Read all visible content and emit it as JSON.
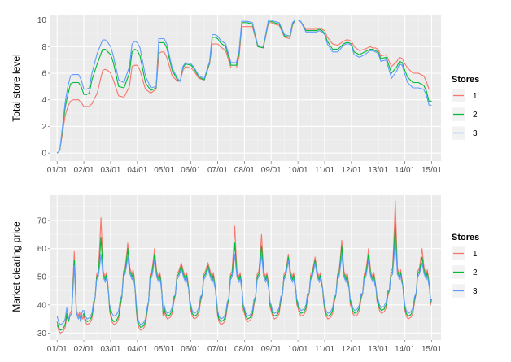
{
  "chart_data": [
    {
      "type": "line",
      "ylabel": "Total store level",
      "ylim": [
        -0.6,
        10.4
      ],
      "yticks": [
        0,
        2,
        4,
        6,
        8,
        10
      ],
      "x_tick_labels": [
        "01/01",
        "02/01",
        "03/01",
        "04/01",
        "05/01",
        "06/01",
        "07/01",
        "08/01",
        "09/01",
        "10/01",
        "11/01",
        "12/01",
        "13/01",
        "14/01",
        "15/01"
      ],
      "x_unit": "day",
      "xlim": [
        -0.25,
        14.35
      ],
      "grid": true,
      "legend": {
        "title": "Stores",
        "position": "right"
      },
      "series": [
        {
          "name": "1",
          "color": "#F8766D",
          "x": [
            0,
            0.1,
            0.2,
            0.3,
            0.4,
            0.5,
            0.6,
            0.7,
            0.8,
            0.9,
            1.0,
            1.1,
            1.2,
            1.3,
            1.5,
            1.7,
            1.8,
            1.9,
            2.0,
            2.1,
            2.3,
            2.5,
            2.7,
            2.8,
            2.9,
            3.0,
            3.1,
            3.3,
            3.5,
            3.7,
            3.8,
            3.9,
            4.0,
            4.1,
            4.3,
            4.5,
            4.6,
            4.7,
            4.8,
            5.0,
            5.1,
            5.3,
            5.5,
            5.7,
            5.8,
            5.9,
            6.0,
            6.1,
            6.3,
            6.5,
            6.7,
            6.8,
            6.9,
            7.0,
            7.1,
            7.3,
            7.5,
            7.7,
            7.8,
            7.9,
            8.0,
            8.1,
            8.3,
            8.5,
            8.7,
            8.8,
            8.9,
            9.0,
            9.1,
            9.3,
            9.5,
            9.7,
            9.8,
            9.9,
            10.0,
            10.1,
            10.3,
            10.5,
            10.7,
            10.8,
            10.9,
            11.0,
            11.1,
            11.3,
            11.5,
            11.7,
            11.8,
            11.9,
            12.0,
            12.1,
            12.3,
            12.5,
            12.7,
            12.8,
            12.9,
            13.0,
            13.1,
            13.3,
            13.5,
            13.7,
            13.8,
            13.9,
            14.0
          ],
          "y": [
            0,
            0.2,
            1.5,
            2.8,
            3.5,
            3.9,
            4.0,
            4.0,
            4.0,
            3.8,
            3.5,
            3.5,
            3.5,
            3.7,
            4.5,
            6.2,
            6.3,
            6.2,
            6.0,
            5.5,
            4.3,
            4.2,
            5.0,
            6.5,
            6.6,
            6.6,
            6.2,
            4.8,
            4.5,
            4.8,
            7.5,
            7.6,
            7.6,
            7.2,
            5.8,
            5.4,
            5.4,
            6.2,
            6.5,
            6.4,
            6.2,
            5.6,
            5.5,
            6.7,
            8.2,
            8.2,
            8.2,
            8.0,
            7.7,
            6.4,
            6.4,
            7.2,
            9.5,
            9.5,
            9.5,
            9.5,
            8.0,
            7.9,
            8.8,
            9.8,
            9.8,
            9.7,
            9.6,
            8.7,
            8.6,
            9.6,
            10.0,
            10.0,
            9.9,
            9.3,
            9.3,
            9.3,
            9.4,
            9.3,
            9.2,
            8.7,
            8.2,
            8.1,
            8.4,
            8.5,
            8.5,
            8.4,
            8.0,
            7.7,
            7.8,
            8.0,
            7.9,
            7.9,
            7.8,
            7.3,
            7.4,
            6.5,
            6.9,
            7.2,
            7.1,
            6.7,
            6.4,
            6.0,
            6.0,
            5.8,
            5.4,
            4.8,
            4.8
          ]
        },
        {
          "name": "2",
          "color": "#00BA38",
          "x": [
            0,
            0.1,
            0.2,
            0.3,
            0.4,
            0.5,
            0.6,
            0.7,
            0.8,
            0.9,
            1.0,
            1.1,
            1.2,
            1.3,
            1.5,
            1.7,
            1.8,
            1.9,
            2.0,
            2.1,
            2.3,
            2.5,
            2.7,
            2.8,
            2.9,
            3.0,
            3.1,
            3.3,
            3.5,
            3.7,
            3.8,
            3.9,
            4.0,
            4.1,
            4.3,
            4.5,
            4.6,
            4.7,
            4.8,
            5.0,
            5.1,
            5.3,
            5.5,
            5.7,
            5.8,
            5.9,
            6.0,
            6.1,
            6.3,
            6.5,
            6.7,
            6.8,
            6.9,
            7.0,
            7.1,
            7.3,
            7.5,
            7.7,
            7.8,
            7.9,
            8.0,
            8.1,
            8.3,
            8.5,
            8.7,
            8.8,
            8.9,
            9.0,
            9.1,
            9.3,
            9.5,
            9.7,
            9.8,
            9.9,
            10.0,
            10.1,
            10.3,
            10.5,
            10.7,
            10.8,
            10.9,
            11.0,
            11.1,
            11.3,
            11.5,
            11.7,
            11.8,
            11.9,
            12.0,
            12.1,
            12.3,
            12.5,
            12.7,
            12.8,
            12.9,
            13.0,
            13.1,
            13.3,
            13.5,
            13.7,
            13.8,
            13.9,
            14.0
          ],
          "y": [
            0,
            0.2,
            1.8,
            3.4,
            4.4,
            5.2,
            5.3,
            5.3,
            5.3,
            5.0,
            4.4,
            4.4,
            4.5,
            5.5,
            6.7,
            7.8,
            7.8,
            7.6,
            7.4,
            6.8,
            5.0,
            4.9,
            6.0,
            7.6,
            7.8,
            7.7,
            7.3,
            5.3,
            4.7,
            4.9,
            8.3,
            8.3,
            8.3,
            7.9,
            6.2,
            5.5,
            5.4,
            6.4,
            6.7,
            6.6,
            6.4,
            5.7,
            5.5,
            6.8,
            8.7,
            8.7,
            8.6,
            8.3,
            8.0,
            6.6,
            6.6,
            7.5,
            9.8,
            9.8,
            9.8,
            9.7,
            8.0,
            7.9,
            8.9,
            9.9,
            9.9,
            9.8,
            9.7,
            8.8,
            8.7,
            9.7,
            10.0,
            10.0,
            9.9,
            9.2,
            9.2,
            9.2,
            9.3,
            9.2,
            9.0,
            8.4,
            7.8,
            7.8,
            8.2,
            8.3,
            8.3,
            8.2,
            7.6,
            7.4,
            7.6,
            7.8,
            7.8,
            7.7,
            7.6,
            7.1,
            7.2,
            6.0,
            6.5,
            6.9,
            6.8,
            6.2,
            5.7,
            5.3,
            5.3,
            5.1,
            4.7,
            3.9,
            3.9
          ]
        },
        {
          "name": "3",
          "color": "#619CFF",
          "x": [
            0,
            0.1,
            0.2,
            0.3,
            0.4,
            0.5,
            0.6,
            0.7,
            0.8,
            0.9,
            1.0,
            1.1,
            1.2,
            1.3,
            1.5,
            1.7,
            1.8,
            1.9,
            2.0,
            2.1,
            2.3,
            2.5,
            2.7,
            2.8,
            2.9,
            3.0,
            3.1,
            3.3,
            3.5,
            3.7,
            3.8,
            3.9,
            4.0,
            4.1,
            4.3,
            4.5,
            4.6,
            4.7,
            4.8,
            5.0,
            5.1,
            5.3,
            5.5,
            5.7,
            5.8,
            5.9,
            6.0,
            6.1,
            6.3,
            6.5,
            6.7,
            6.8,
            6.9,
            7.0,
            7.1,
            7.3,
            7.5,
            7.7,
            7.8,
            7.9,
            8.0,
            8.1,
            8.3,
            8.5,
            8.7,
            8.8,
            8.9,
            9.0,
            9.1,
            9.3,
            9.5,
            9.7,
            9.8,
            9.9,
            10.0,
            10.1,
            10.3,
            10.5,
            10.7,
            10.8,
            10.9,
            11.0,
            11.1,
            11.3,
            11.5,
            11.7,
            11.8,
            11.9,
            12.0,
            12.1,
            12.3,
            12.5,
            12.7,
            12.8,
            12.9,
            13.0,
            13.1,
            13.3,
            13.5,
            13.7,
            13.8,
            13.9,
            14.0
          ],
          "y": [
            0,
            0.2,
            2.0,
            3.8,
            5.0,
            5.8,
            5.9,
            5.9,
            5.9,
            5.5,
            4.8,
            4.8,
            4.9,
            6.0,
            7.5,
            8.5,
            8.5,
            8.3,
            8.0,
            7.3,
            5.5,
            5.3,
            6.5,
            8.2,
            8.4,
            8.3,
            7.9,
            5.8,
            4.9,
            5.0,
            8.6,
            8.6,
            8.6,
            8.2,
            6.4,
            5.6,
            5.4,
            6.5,
            6.8,
            6.7,
            6.5,
            5.8,
            5.6,
            6.9,
            8.9,
            8.9,
            8.8,
            8.5,
            8.2,
            6.8,
            6.8,
            7.7,
            9.9,
            9.9,
            9.9,
            9.8,
            8.1,
            8.0,
            9.0,
            10.0,
            10.0,
            9.9,
            9.8,
            8.9,
            8.8,
            9.8,
            10.0,
            10.0,
            9.9,
            9.1,
            9.1,
            9.1,
            9.2,
            9.1,
            8.9,
            8.2,
            7.6,
            7.6,
            8.1,
            8.2,
            8.2,
            8.1,
            7.4,
            7.2,
            7.4,
            7.7,
            7.7,
            7.6,
            7.5,
            6.9,
            7.0,
            5.6,
            6.2,
            6.7,
            6.6,
            5.9,
            5.3,
            4.9,
            4.9,
            4.8,
            4.4,
            3.6,
            3.6
          ]
        }
      ]
    },
    {
      "type": "line",
      "ylabel": "Market clearing price",
      "ylim": [
        27.5,
        79
      ],
      "yticks": [
        30,
        40,
        50,
        60,
        70
      ],
      "x_tick_labels": [
        "01/01",
        "02/01",
        "03/01",
        "04/01",
        "05/01",
        "06/01",
        "07/01",
        "08/01",
        "09/01",
        "10/01",
        "11/01",
        "12/01",
        "13/01",
        "14/01",
        "15/01"
      ],
      "x_unit": "day",
      "xlim": [
        -0.25,
        14.35
      ],
      "grid": true,
      "legend": {
        "title": "Stores",
        "position": "right"
      },
      "daily_pattern_x": [
        0.0,
        0.05,
        0.12,
        0.22,
        0.3,
        0.36,
        0.42,
        0.48,
        0.54,
        0.6,
        0.64,
        0.68,
        0.72,
        0.76,
        0.8,
        0.84,
        0.88,
        0.92,
        0.96
      ],
      "daily_pattern_note_x_offsets_within_each_day": true,
      "series": [
        {
          "name": "1",
          "color": "#F8766D",
          "daily_low": [
            30,
            33,
            33,
            31,
            35,
            35,
            33,
            34,
            35,
            36,
            35,
            36,
            37,
            35
          ],
          "daily_plateau": [
            38,
            52,
            53,
            52,
            52,
            52,
            52,
            52,
            52,
            52,
            52,
            52,
            53,
            53
          ],
          "daily_peak": [
            59,
            71,
            62,
            60,
            55,
            55,
            68,
            65,
            58,
            57,
            63,
            60,
            77,
            60
          ],
          "end_value": 42
        },
        {
          "name": "2",
          "color": "#00BA38",
          "daily_low": [
            31,
            34,
            34,
            32,
            36,
            36,
            34,
            35,
            36,
            37,
            36,
            37,
            38,
            36
          ],
          "daily_plateau": [
            37,
            51,
            52,
            51,
            51,
            51,
            51,
            51,
            51,
            51,
            51,
            51,
            52,
            52
          ],
          "daily_peak": [
            56,
            64,
            60,
            58,
            54,
            54,
            62,
            61,
            57,
            56,
            61,
            58,
            69,
            57
          ],
          "end_value": 42
        },
        {
          "name": "3",
          "color": "#619CFF",
          "daily_low": [
            33,
            35,
            36,
            33,
            37,
            37,
            35,
            36,
            37,
            38,
            37,
            38,
            39,
            37
          ],
          "daily_plateau": [
            37,
            50,
            51,
            50,
            50,
            50,
            50,
            50,
            50,
            50,
            50,
            50,
            51,
            51
          ],
          "daily_peak": [
            54,
            58,
            57,
            56,
            53,
            53,
            58,
            58,
            56,
            55,
            58,
            56,
            64,
            55
          ],
          "end_value": 41
        }
      ]
    }
  ]
}
